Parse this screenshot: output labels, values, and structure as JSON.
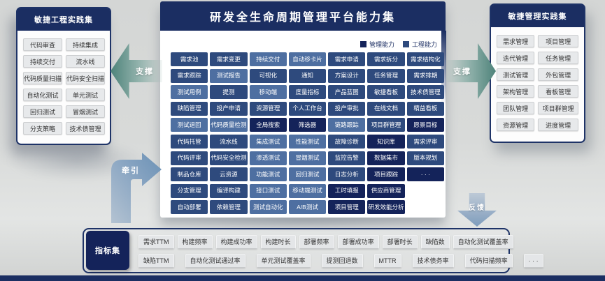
{
  "colors": {
    "management": "#14235a",
    "engineering": "#2e4a7d",
    "testing": "#4e6fa1",
    "header": "#1b2e62",
    "border": "#1e3367"
  },
  "center": {
    "title": "研发全生命周期管理平台能力集",
    "legend": [
      {
        "label": "管理能力",
        "type": "m"
      },
      {
        "label": "工程能力",
        "type": "e"
      }
    ],
    "rows": [
      [
        {
          "label": "需求池",
          "type": "e"
        },
        {
          "label": "需求变更",
          "type": "e"
        },
        {
          "label": "持续交付",
          "type": "t"
        },
        {
          "label": "自动移卡片",
          "type": "t"
        },
        {
          "label": "需求申请",
          "type": "e"
        },
        {
          "label": "需求拆分",
          "type": "e"
        },
        {
          "label": "需求结构化",
          "type": "e"
        }
      ],
      [
        {
          "label": "需求跟踪",
          "type": "e"
        },
        {
          "label": "测试报告",
          "type": "t"
        },
        {
          "label": "可视化",
          "type": "e"
        },
        {
          "label": "通知",
          "type": "e"
        },
        {
          "label": "方案设计",
          "type": "e"
        },
        {
          "label": "任务管理",
          "type": "e"
        },
        {
          "label": "需求排期",
          "type": "e"
        }
      ],
      [
        {
          "label": "测试用例",
          "type": "t"
        },
        {
          "label": "提测",
          "type": "e"
        },
        {
          "label": "移动端",
          "type": "t"
        },
        {
          "label": "度量指标",
          "type": "e"
        },
        {
          "label": "产品蓝图",
          "type": "e"
        },
        {
          "label": "敏捷看板",
          "type": "e"
        },
        {
          "label": "技术债管理",
          "type": "e"
        }
      ],
      [
        {
          "label": "缺陷管理",
          "type": "e"
        },
        {
          "label": "投产申请",
          "type": "e"
        },
        {
          "label": "资源管理",
          "type": "e"
        },
        {
          "label": "个人工作台",
          "type": "e"
        },
        {
          "label": "投产审批",
          "type": "e"
        },
        {
          "label": "在线文档",
          "type": "e"
        },
        {
          "label": "精益看板",
          "type": "e"
        }
      ],
      [
        {
          "label": "测试退回",
          "type": "t"
        },
        {
          "label": "代码质量检测",
          "type": "t"
        },
        {
          "label": "全局搜索",
          "type": "m"
        },
        {
          "label": "筛选器",
          "type": "m"
        },
        {
          "label": "链路跟踪",
          "type": "t"
        },
        {
          "label": "项目群管理",
          "type": "e"
        },
        {
          "label": "愿景目标",
          "type": "m"
        }
      ],
      [
        {
          "label": "代码托管",
          "type": "e"
        },
        {
          "label": "流水线",
          "type": "e"
        },
        {
          "label": "集成测试",
          "type": "t"
        },
        {
          "label": "性能测试",
          "type": "t"
        },
        {
          "label": "故障诊断",
          "type": "e"
        },
        {
          "label": "知识库",
          "type": "m"
        },
        {
          "label": "需求评审",
          "type": "e"
        }
      ],
      [
        {
          "label": "代码评审",
          "type": "e"
        },
        {
          "label": "代码安全检测",
          "type": "e"
        },
        {
          "label": "渗透测试",
          "type": "t"
        },
        {
          "label": "冒烟测试",
          "type": "t"
        },
        {
          "label": "监控告警",
          "type": "e"
        },
        {
          "label": "数据集市",
          "type": "m"
        },
        {
          "label": "版本规划",
          "type": "e"
        }
      ],
      [
        {
          "label": "制品仓库",
          "type": "e"
        },
        {
          "label": "云资源",
          "type": "e"
        },
        {
          "label": "功能测试",
          "type": "t"
        },
        {
          "label": "回归测试",
          "type": "t"
        },
        {
          "label": "日志分析",
          "type": "e"
        },
        {
          "label": "项目跟踪",
          "type": "m"
        },
        {
          "label": "· · ·",
          "type": "m"
        }
      ],
      [
        {
          "label": "分支管理",
          "type": "e"
        },
        {
          "label": "编译构建",
          "type": "e"
        },
        {
          "label": "接口测试",
          "type": "t"
        },
        {
          "label": "移动端测试",
          "type": "t"
        },
        {
          "label": "工时填报",
          "type": "m"
        },
        {
          "label": "供应商管理",
          "type": "m"
        }
      ],
      [
        {
          "label": "自动部署",
          "type": "e"
        },
        {
          "label": "依赖管理",
          "type": "e"
        },
        {
          "label": "测试自动化",
          "type": "t"
        },
        {
          "label": "A/B测试",
          "type": "t"
        },
        {
          "label": "项目管理",
          "type": "m"
        },
        {
          "label": "研发效能分析",
          "type": "m"
        }
      ]
    ]
  },
  "left_panel": {
    "title": "敏捷工程实践集",
    "items": [
      "代码审查",
      "持续集成",
      "持续交付",
      "流水线",
      "代码质量扫描",
      "代码安全扫描",
      "自动化测试",
      "单元测试",
      "回归测试",
      "冒烟测试",
      "分支策略",
      "技术债管理"
    ]
  },
  "right_panel": {
    "title": "敏捷管理实践集",
    "items": [
      "需求管理",
      "项目管理",
      "迭代管理",
      "任务管理",
      "测试管理",
      "外包管理",
      "架构管理",
      "看板管理",
      "团队管理",
      "项目群管理",
      "资源管理",
      "进度管理"
    ]
  },
  "arrows": {
    "left_support": "支撑",
    "right_support": "支撑",
    "pull": "牵引",
    "feedback": "反馈"
  },
  "metrics": {
    "label": "指标集",
    "rows": [
      [
        "需求TTM",
        "构建频率",
        "构建成功率",
        "构建时长",
        "部署频率",
        "部署成功率",
        "部署时长",
        "缺陷数",
        "自动化测试覆盖率"
      ],
      [
        "缺陷TTM",
        "自动化测试通过率",
        "单元测试覆盖率",
        "提测回退数",
        "MTTR",
        "技术债务率",
        "代码扫描频率",
        "· · ·"
      ]
    ]
  }
}
